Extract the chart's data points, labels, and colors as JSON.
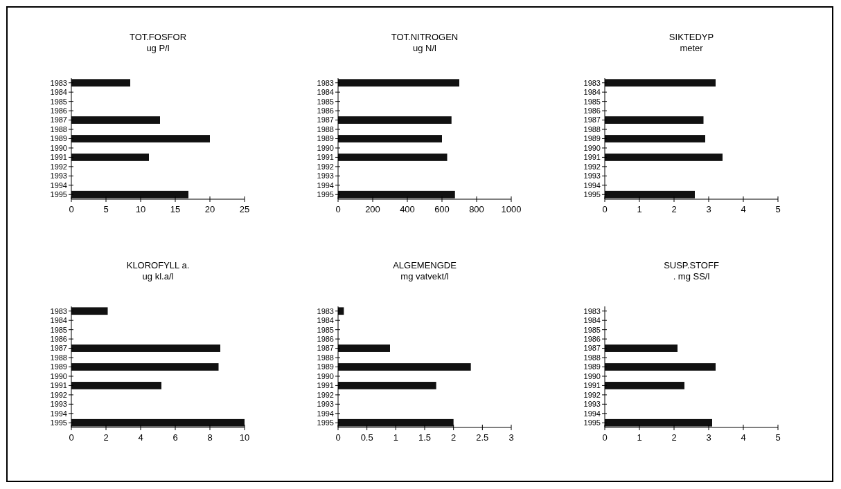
{
  "chart_data": [
    {
      "type": "bar",
      "orientation": "horizontal",
      "title": "TOT.FOSFOR",
      "subtitle": "ug P/l",
      "categories": [
        "1983",
        "1984",
        "1985",
        "1986",
        "1987",
        "1988",
        "1989",
        "1990",
        "1991",
        "1992",
        "1993",
        "1994",
        "1995"
      ],
      "values": [
        8.5,
        null,
        null,
        null,
        12.8,
        null,
        20,
        null,
        11.2,
        null,
        null,
        null,
        16.9
      ],
      "color": "#111111",
      "xlim": [
        0,
        25
      ],
      "xticks": [
        0,
        5,
        10,
        15,
        20,
        25
      ],
      "grid": false
    },
    {
      "type": "bar",
      "orientation": "horizontal",
      "title": "TOT.NITROGEN",
      "subtitle": "ug N/l",
      "categories": [
        "1983",
        "1984",
        "1985",
        "1986",
        "1987",
        "1988",
        "1989",
        "1990",
        "1991",
        "1992",
        "1993",
        "1994",
        "1995"
      ],
      "values": [
        700,
        null,
        null,
        null,
        655,
        null,
        600,
        null,
        630,
        null,
        null,
        null,
        675
      ],
      "color": "#111111",
      "xlim": [
        0,
        1000
      ],
      "xticks": [
        0,
        200,
        400,
        600,
        800,
        1000
      ],
      "grid": false
    },
    {
      "type": "bar",
      "orientation": "horizontal",
      "title": "SIKTEDYP",
      "subtitle": "meter",
      "categories": [
        "1983",
        "1984",
        "1985",
        "1986",
        "1987",
        "1988",
        "1989",
        "1990",
        "1991",
        "1992",
        "1993",
        "1994",
        "1995"
      ],
      "values": [
        3.2,
        null,
        null,
        null,
        2.85,
        null,
        2.9,
        null,
        3.4,
        null,
        null,
        null,
        2.6
      ],
      "color": "#111111",
      "xlim": [
        0,
        5
      ],
      "xticks": [
        0,
        1,
        2,
        3,
        4,
        5
      ],
      "grid": false
    },
    {
      "type": "bar",
      "orientation": "horizontal",
      "title": "KLOROFYLL a.",
      "subtitle": "ug kl.a/l",
      "categories": [
        "1983",
        "1984",
        "1985",
        "1986",
        "1987",
        "1988",
        "1989",
        "1990",
        "1991",
        "1992",
        "1993",
        "1994",
        "1995"
      ],
      "values": [
        2.1,
        null,
        null,
        null,
        8.6,
        null,
        8.5,
        null,
        5.2,
        null,
        null,
        null,
        10
      ],
      "color": "#111111",
      "xlim": [
        0,
        10
      ],
      "xticks": [
        0,
        2,
        4,
        6,
        8,
        10
      ],
      "grid": false
    },
    {
      "type": "bar",
      "orientation": "horizontal",
      "title": "ALGEMENGDE",
      "subtitle": "mg vatvekt/l",
      "categories": [
        "1983",
        "1984",
        "1985",
        "1986",
        "1987",
        "1988",
        "1989",
        "1990",
        "1991",
        "1992",
        "1993",
        "1994",
        "1995"
      ],
      "values": [
        0.1,
        null,
        null,
        null,
        0.9,
        null,
        2.3,
        null,
        1.7,
        null,
        null,
        null,
        2.0
      ],
      "color": "#111111",
      "xlim": [
        0,
        3
      ],
      "xticks": [
        0,
        0.5,
        1,
        1.5,
        2,
        2.5,
        3
      ],
      "grid": false
    },
    {
      "type": "bar",
      "orientation": "horizontal",
      "title": "SUSP.STOFF",
      "subtitle": ". mg SS/l",
      "categories": [
        "1983",
        "1984",
        "1985",
        "1986",
        "1987",
        "1988",
        "1989",
        "1990",
        "1991",
        "1992",
        "1993",
        "1994",
        "1995"
      ],
      "values": [
        null,
        null,
        null,
        null,
        2.1,
        null,
        3.2,
        null,
        2.3,
        null,
        null,
        null,
        3.1
      ],
      "color": "#111111",
      "xlim": [
        0,
        5
      ],
      "xticks": [
        0,
        1,
        2,
        3,
        4,
        5
      ],
      "grid": false
    }
  ]
}
